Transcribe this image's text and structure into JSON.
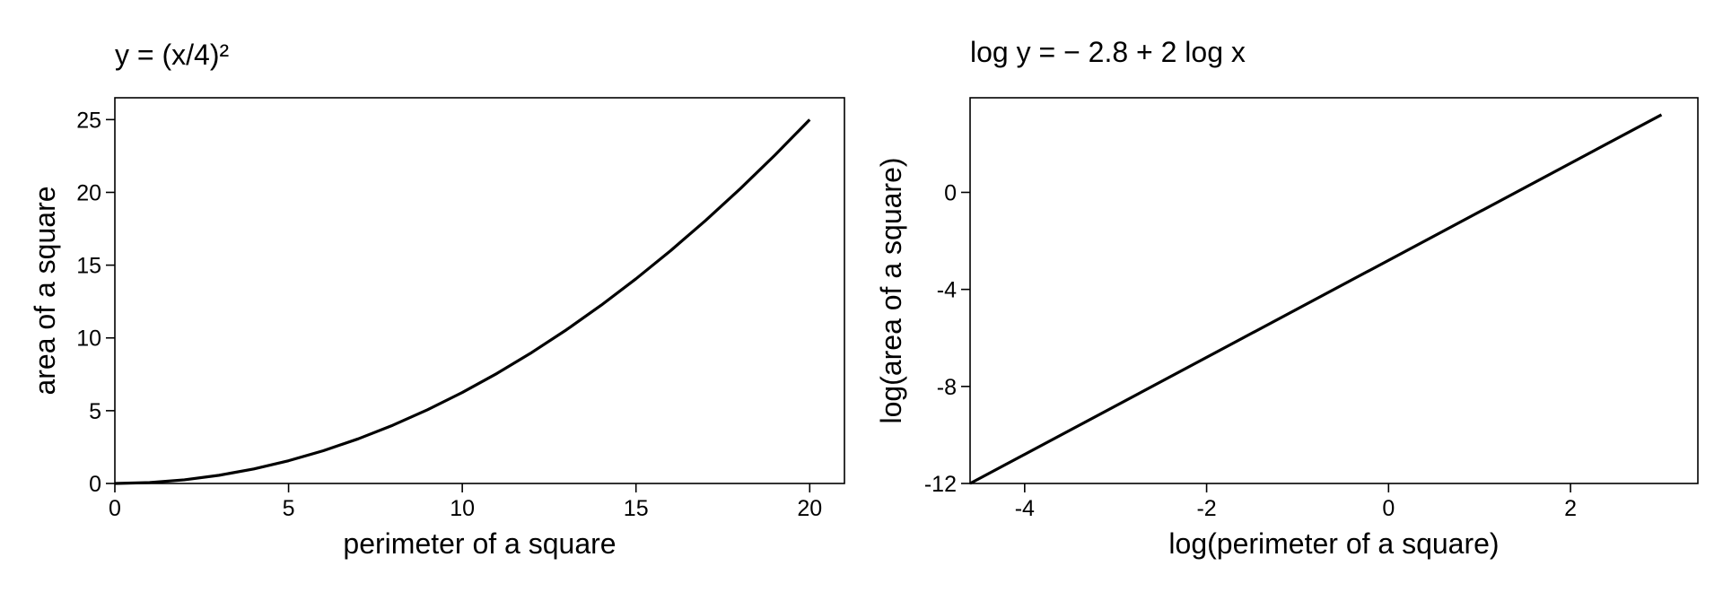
{
  "chart_data": [
    {
      "type": "line",
      "title": "y = (x/4)²",
      "xlabel": "perimeter of a square",
      "ylabel": "area of a square",
      "xlim": [
        0,
        21
      ],
      "ylim": [
        0,
        26.5
      ],
      "xticks": [
        0,
        5,
        10,
        15,
        20
      ],
      "yticks": [
        0,
        5,
        10,
        15,
        20,
        25
      ],
      "grid": false,
      "line_color": "#000000",
      "series": [
        {
          "x": [
            0,
            1,
            2,
            3,
            4,
            5,
            6,
            7,
            8,
            9,
            10,
            11,
            12,
            13,
            14,
            15,
            16,
            17,
            18,
            19,
            20
          ],
          "values": [
            0,
            0.0625,
            0.25,
            0.5625,
            1,
            1.5625,
            2.25,
            3.0625,
            4,
            5.0625,
            6.25,
            7.5625,
            9,
            10.5625,
            12.25,
            14.0625,
            16,
            18.0625,
            20.25,
            22.5625,
            25
          ]
        }
      ]
    },
    {
      "type": "line",
      "title": "log y = − 2.8 + 2 log x",
      "xlabel": "log(perimeter of a square)",
      "ylabel": "log(area of a square)",
      "xlim": [
        -4.6,
        3.4
      ],
      "ylim": [
        -12,
        3.9
      ],
      "xticks": [
        -4,
        -2,
        0,
        2
      ],
      "yticks": [
        -12,
        -8,
        -4,
        0
      ],
      "grid": false,
      "line_color": "#000000",
      "series": [
        {
          "x": [
            -4.6,
            3.0
          ],
          "values": [
            -12.0,
            3.2
          ]
        }
      ]
    }
  ]
}
